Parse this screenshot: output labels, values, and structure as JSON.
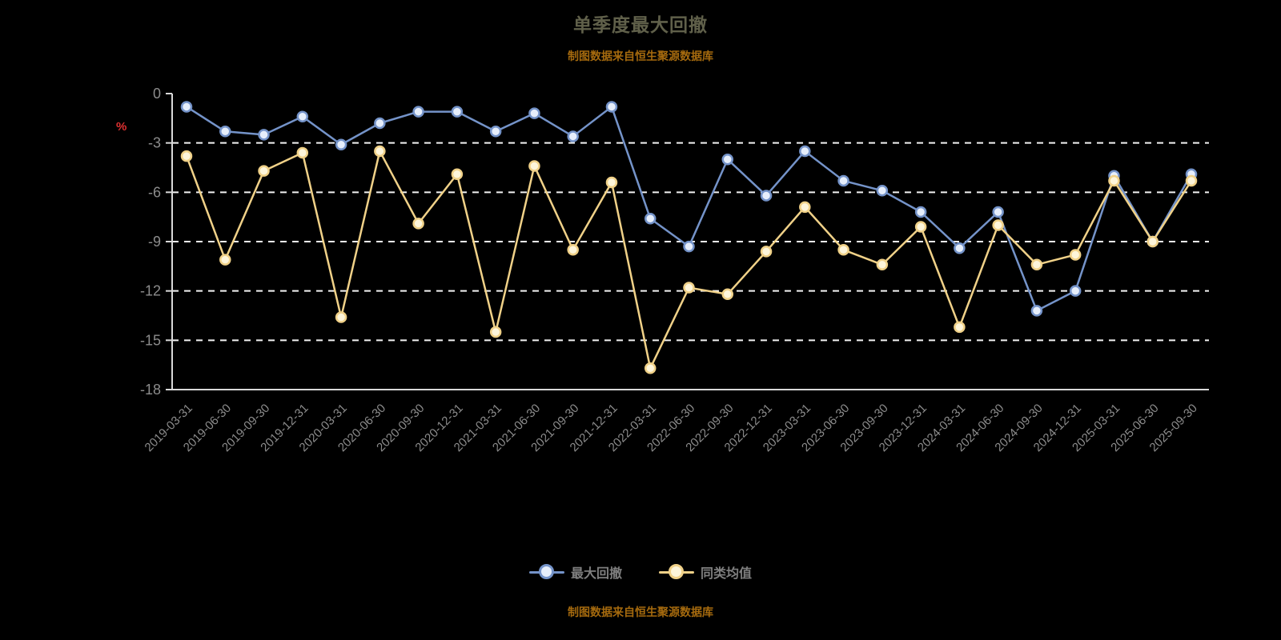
{
  "title": "单季度最大回撤",
  "subtitle": "制图数据来自恒生聚源数据库",
  "footer": "制图数据来自恒生聚源数据库",
  "colors": {
    "background": "#000000",
    "title": "#60604a",
    "subtitle_orange": "#a56a0e",
    "grid": "#f2f2f2",
    "axis": "#d9d9d9",
    "tick_label": "#8c8c8c",
    "unit_red": "#e03131",
    "series_blue": "#7493c9",
    "series_yellow": "#f0d188"
  },
  "legend": [
    {
      "label": "最大回撤",
      "color": "#7493c9",
      "marker_fill": "#e6eefb"
    },
    {
      "label": "同类均值",
      "color": "#f0d188",
      "marker_fill": "#fdf5da"
    }
  ],
  "chart_data": {
    "type": "line",
    "title": "单季度最大回撤",
    "ylabel": "%",
    "ylim": [
      -18,
      0
    ],
    "yticks": [
      0,
      -3,
      -6,
      -9,
      -12,
      -15,
      -18
    ],
    "grid": "horizontal dashed",
    "legend_position": "bottom",
    "categories": [
      "2019-03-31",
      "2019-06-30",
      "2019-09-30",
      "2019-12-31",
      "2020-03-31",
      "2020-06-30",
      "2020-09-30",
      "2020-12-31",
      "2021-03-31",
      "2021-06-30",
      "2021-09-30",
      "2021-12-31",
      "2022-03-31",
      "2022-06-30",
      "2022-09-30",
      "2022-12-31",
      "2023-03-31",
      "2023-06-30",
      "2023-09-30",
      "2023-12-31",
      "2024-03-31",
      "2024-06-30",
      "2024-09-30",
      "2024-12-31",
      "2025-03-31",
      "2025-06-30",
      "2025-09-30"
    ],
    "series": [
      {
        "name": "最大回撤",
        "color": "#7493c9",
        "marker_fill": "#e6eefb",
        "values": [
          -0.8,
          -2.3,
          -2.5,
          -1.4,
          -3.1,
          -1.8,
          -1.1,
          -1.1,
          -2.3,
          -1.2,
          -2.6,
          -0.8,
          -7.6,
          -9.3,
          -4.0,
          -6.2,
          -3.5,
          -5.3,
          -5.9,
          -7.2,
          -9.4,
          -7.2,
          -13.2,
          -12.0,
          -5.0,
          -9.0,
          -4.9
        ]
      },
      {
        "name": "同类均值",
        "color": "#f0d188",
        "marker_fill": "#fdf5da",
        "values": [
          -3.8,
          -10.1,
          -4.7,
          -3.6,
          -13.6,
          -3.5,
          -7.9,
          -4.9,
          -14.5,
          -4.4,
          -9.5,
          -5.4,
          -16.7,
          -11.8,
          -12.2,
          -9.6,
          -6.9,
          -9.5,
          -10.4,
          -8.1,
          -14.2,
          -8.0,
          -10.4,
          -9.8,
          -5.3,
          -9.0,
          -5.3
        ]
      }
    ]
  }
}
